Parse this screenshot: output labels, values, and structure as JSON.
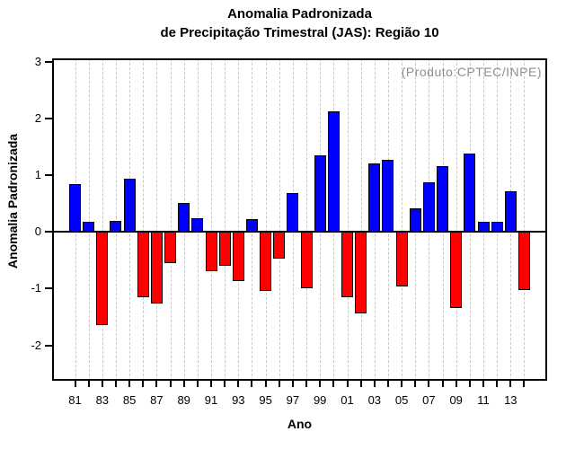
{
  "title": {
    "line1": "Anomalia Padronizada",
    "line2": "de Precipitação Trimestral (JAS): Região 10"
  },
  "annotation": "(Produto:CPTEC/INPE)",
  "chart_data": {
    "type": "bar",
    "title": "Anomalia Padronizada de Precipitação Trimestral (JAS): Região 10",
    "xlabel": "Ano",
    "ylabel": "Anomalia Padronizada",
    "categories": [
      "81",
      "82",
      "83",
      "84",
      "85",
      "86",
      "87",
      "88",
      "89",
      "90",
      "91",
      "92",
      "93",
      "94",
      "95",
      "96",
      "97",
      "98",
      "99",
      "00",
      "01",
      "02",
      "03",
      "04",
      "05",
      "06",
      "07",
      "08",
      "09",
      "10",
      "11",
      "12",
      "13",
      "14"
    ],
    "values": [
      0.85,
      0.18,
      -1.64,
      0.19,
      0.94,
      -1.15,
      -1.27,
      -0.55,
      0.51,
      0.25,
      -0.7,
      -0.6,
      -0.86,
      0.22,
      -1.04,
      -0.47,
      0.69,
      -0.99,
      1.35,
      2.13,
      -1.16,
      -1.44,
      1.21,
      1.27,
      -0.96,
      0.41,
      0.87,
      1.16,
      -1.34,
      1.39,
      0.18,
      0.18,
      0.72,
      -1.03
    ],
    "x_tick_labels": [
      "81",
      "83",
      "85",
      "87",
      "89",
      "91",
      "93",
      "95",
      "97",
      "99",
      "01",
      "03",
      "05",
      "07",
      "09",
      "11",
      "13"
    ],
    "yticks": [
      3,
      2,
      1,
      0,
      -1,
      -2
    ],
    "ylim": [
      -2.63,
      3.06
    ],
    "grid": "vertical-dashed",
    "legend": "none",
    "colors": {
      "positive_bar": "#0000ff",
      "negative_bar": "#ff0000",
      "grid_line": "#c8c8c8",
      "annotation_text": "#8f8f8f",
      "axis": "#000000"
    }
  }
}
